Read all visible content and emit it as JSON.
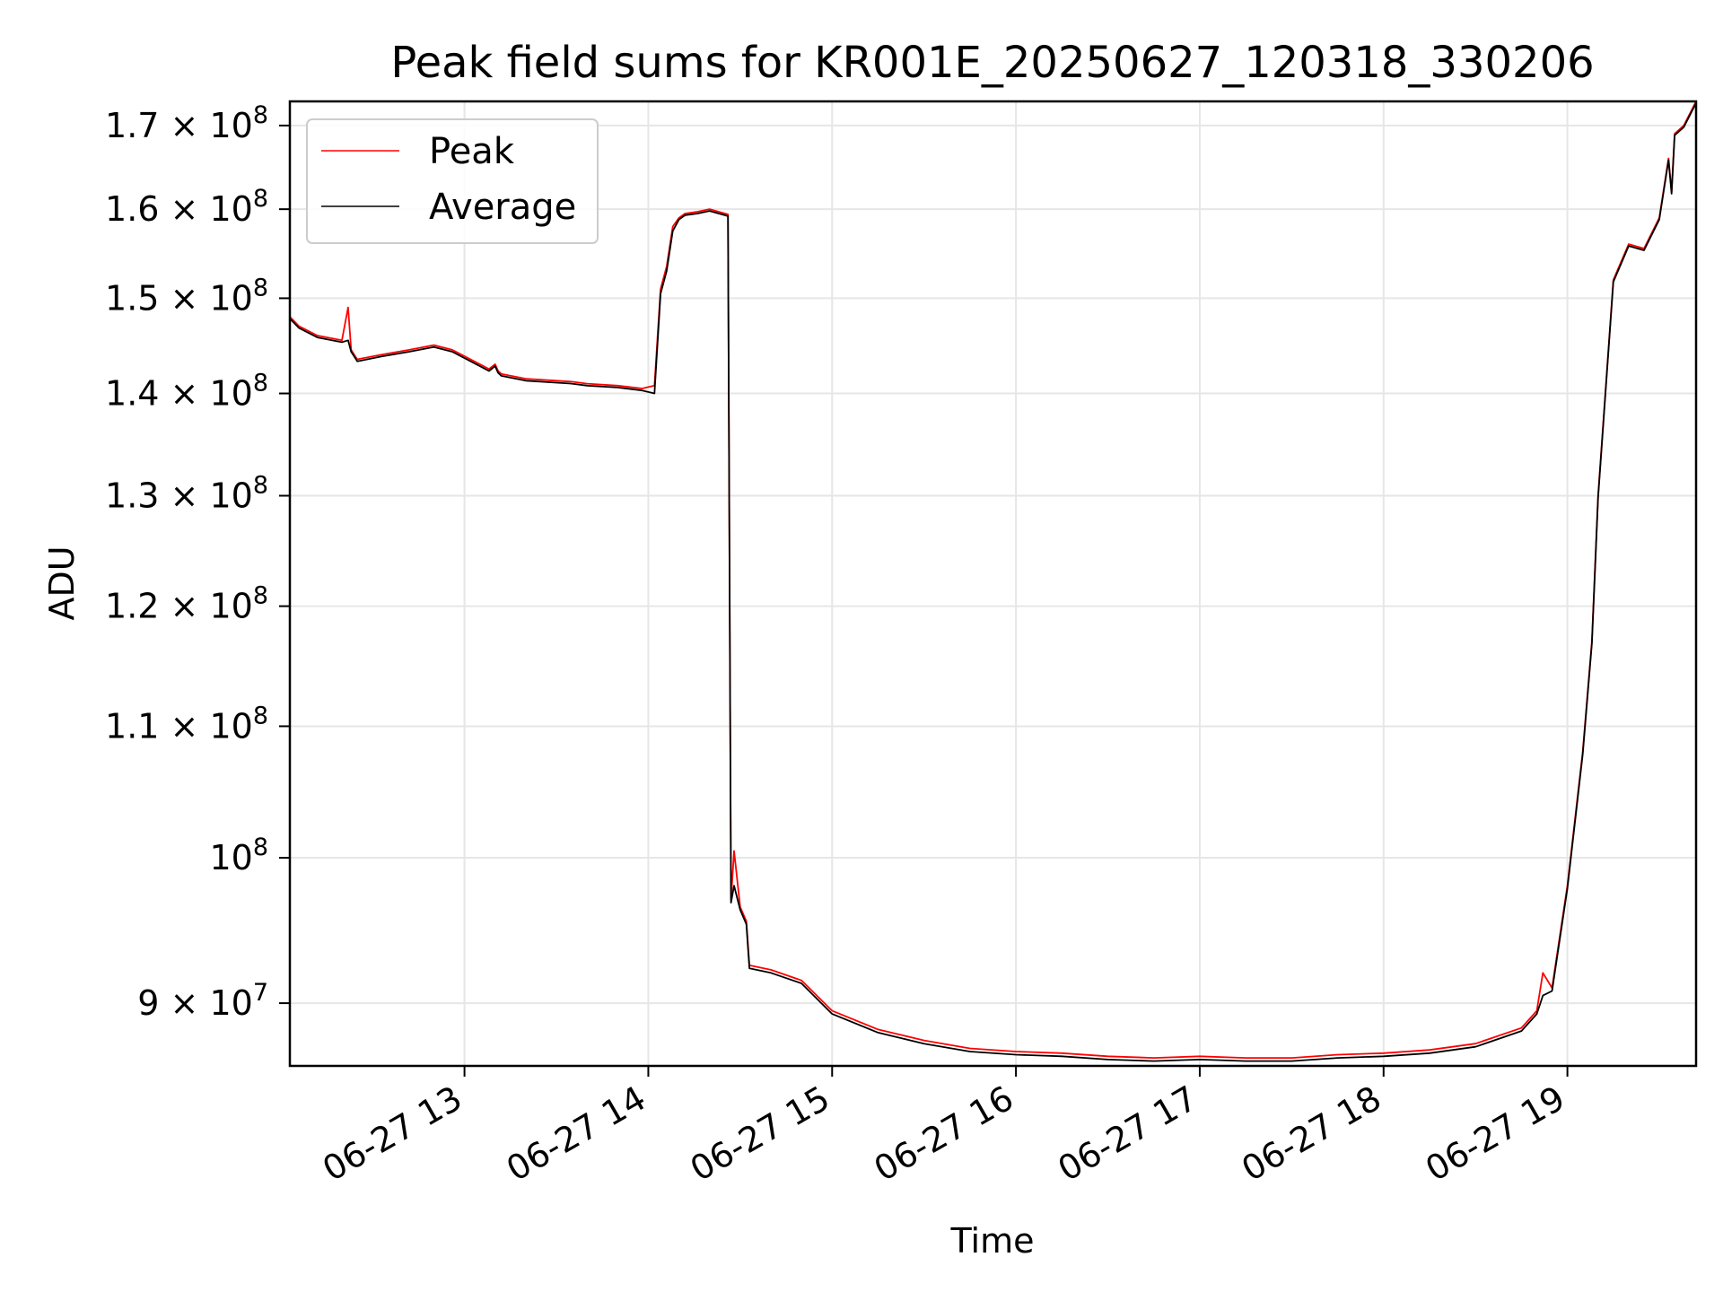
{
  "chart_data": {
    "type": "line",
    "title": "Peak field sums for KR001E_20250627_120318_330206",
    "xlabel": "Time",
    "ylabel": "ADU",
    "y_scale": "log",
    "grid": true,
    "legend_position": "upper-left",
    "x_range": [
      "06-27 12:03",
      "06-27 19:42"
    ],
    "ylim": [
      86000000,
      173000000
    ],
    "x_ticks": [
      "06-27 13",
      "06-27 14",
      "06-27 15",
      "06-27 16",
      "06-27 17",
      "06-27 18",
      "06-27 19"
    ],
    "y_ticks": [
      {
        "value": 90000000,
        "mant": "9",
        "exp": "7"
      },
      {
        "value": 100000000,
        "mant": "",
        "exp": "8"
      },
      {
        "value": 110000000,
        "mant": "1.1",
        "exp": "8"
      },
      {
        "value": 120000000,
        "mant": "1.2",
        "exp": "8"
      },
      {
        "value": 130000000,
        "mant": "1.3",
        "exp": "8"
      },
      {
        "value": 140000000,
        "mant": "1.4",
        "exp": "8"
      },
      {
        "value": 150000000,
        "mant": "1.5",
        "exp": "8"
      },
      {
        "value": 160000000,
        "mant": "1.6",
        "exp": "8"
      },
      {
        "value": 170000000,
        "mant": "1.7",
        "exp": "8"
      }
    ],
    "series": [
      {
        "name": "Peak",
        "color": "#ff0000",
        "x": [
          "06-27 12:03",
          "06-27 12:06",
          "06-27 12:12",
          "06-27 12:20",
          "06-27 12:22",
          "06-27 12:23",
          "06-27 12:24",
          "06-27 12:25",
          "06-27 12:33",
          "06-27 12:42",
          "06-27 12:50",
          "06-27 12:56",
          "06-27 13:05",
          "06-27 13:08",
          "06-27 13:10",
          "06-27 13:11",
          "06-27 13:12",
          "06-27 13:20",
          "06-27 13:30",
          "06-27 13:35",
          "06-27 13:40",
          "06-27 13:50",
          "06-27 13:58",
          "06-27 14:02",
          "06-27 14:04",
          "06-27 14:06",
          "06-27 14:08",
          "06-27 14:10",
          "06-27 14:12",
          "06-27 14:16",
          "06-27 14:20",
          "06-27 14:25",
          "06-27 14:26",
          "06-27 14:27",
          "06-27 14:28",
          "06-27 14:30",
          "06-27 14:32",
          "06-27 14:33",
          "06-27 14:40",
          "06-27 14:50",
          "06-27 15:00",
          "06-27 15:15",
          "06-27 15:30",
          "06-27 15:45",
          "06-27 16:00",
          "06-27 16:15",
          "06-27 16:30",
          "06-27 16:45",
          "06-27 17:00",
          "06-27 17:15",
          "06-27 17:30",
          "06-27 17:45",
          "06-27 18:00",
          "06-27 18:15",
          "06-27 18:30",
          "06-27 18:45",
          "06-27 18:50",
          "06-27 18:52",
          "06-27 18:55",
          "06-27 19:00",
          "06-27 19:05",
          "06-27 19:08",
          "06-27 19:10",
          "06-27 19:15",
          "06-27 19:20",
          "06-27 19:25",
          "06-27 19:30",
          "06-27 19:33",
          "06-27 19:34",
          "06-27 19:35",
          "06-27 19:38",
          "06-27 19:42"
        ],
        "values": [
          148000000,
          147000000,
          146000000,
          145500000,
          149000000,
          144500000,
          144000000,
          143500000,
          144000000,
          144500000,
          145000000,
          144500000,
          143000000,
          142500000,
          143000000,
          142300000,
          142000000,
          141500000,
          141300000,
          141200000,
          141000000,
          140800000,
          140500000,
          140800000,
          151000000,
          153500000,
          158000000,
          159000000,
          159500000,
          159700000,
          160000000,
          159500000,
          159400000,
          97000000,
          100500000,
          96500000,
          95500000,
          92500000,
          92200000,
          91500000,
          89500000,
          88300000,
          87600000,
          87100000,
          86900000,
          86800000,
          86600000,
          86500000,
          86600000,
          86500000,
          86500000,
          86700000,
          86800000,
          87000000,
          87400000,
          88400000,
          89500000,
          92000000,
          91000000,
          98000000,
          108000000,
          117000000,
          130000000,
          152000000,
          156000000,
          155500000,
          159000000,
          166000000,
          162000000,
          169000000,
          170000000,
          173000000
        ]
      },
      {
        "name": "Average",
        "color": "#000000",
        "x": [
          "06-27 12:03",
          "06-27 12:06",
          "06-27 12:12",
          "06-27 12:20",
          "06-27 12:22",
          "06-27 12:23",
          "06-27 12:24",
          "06-27 12:25",
          "06-27 12:33",
          "06-27 12:42",
          "06-27 12:50",
          "06-27 12:56",
          "06-27 13:05",
          "06-27 13:08",
          "06-27 13:10",
          "06-27 13:11",
          "06-27 13:12",
          "06-27 13:20",
          "06-27 13:30",
          "06-27 13:35",
          "06-27 13:40",
          "06-27 13:50",
          "06-27 13:58",
          "06-27 14:02",
          "06-27 14:04",
          "06-27 14:06",
          "06-27 14:08",
          "06-27 14:10",
          "06-27 14:12",
          "06-27 14:16",
          "06-27 14:20",
          "06-27 14:25",
          "06-27 14:26",
          "06-27 14:27",
          "06-27 14:28",
          "06-27 14:30",
          "06-27 14:32",
          "06-27 14:33",
          "06-27 14:40",
          "06-27 14:50",
          "06-27 15:00",
          "06-27 15:15",
          "06-27 15:30",
          "06-27 15:45",
          "06-27 16:00",
          "06-27 16:15",
          "06-27 16:30",
          "06-27 16:45",
          "06-27 17:00",
          "06-27 17:15",
          "06-27 17:30",
          "06-27 17:45",
          "06-27 18:00",
          "06-27 18:15",
          "06-27 18:30",
          "06-27 18:45",
          "06-27 18:50",
          "06-27 18:52",
          "06-27 18:55",
          "06-27 19:00",
          "06-27 19:05",
          "06-27 19:08",
          "06-27 19:10",
          "06-27 19:15",
          "06-27 19:20",
          "06-27 19:25",
          "06-27 19:30",
          "06-27 19:33",
          "06-27 19:34",
          "06-27 19:35",
          "06-27 19:38",
          "06-27 19:42"
        ],
        "values": [
          147800000,
          146800000,
          145800000,
          145300000,
          145500000,
          144300000,
          143800000,
          143300000,
          143800000,
          144300000,
          144800000,
          144300000,
          142800000,
          142300000,
          142800000,
          142100000,
          141800000,
          141300000,
          141100000,
          141000000,
          140800000,
          140600000,
          140300000,
          140000000,
          150500000,
          153000000,
          157500000,
          158800000,
          159300000,
          159500000,
          159800000,
          159300000,
          159200000,
          96800000,
          98000000,
          96300000,
          95300000,
          92300000,
          92000000,
          91300000,
          89300000,
          88100000,
          87400000,
          86900000,
          86700000,
          86600000,
          86400000,
          86300000,
          86400000,
          86300000,
          86300000,
          86500000,
          86600000,
          86800000,
          87200000,
          88200000,
          89300000,
          90500000,
          90800000,
          97800000,
          107800000,
          116800000,
          129800000,
          151800000,
          155800000,
          155300000,
          158800000,
          165800000,
          161800000,
          168800000,
          169800000,
          172800000
        ]
      }
    ]
  }
}
